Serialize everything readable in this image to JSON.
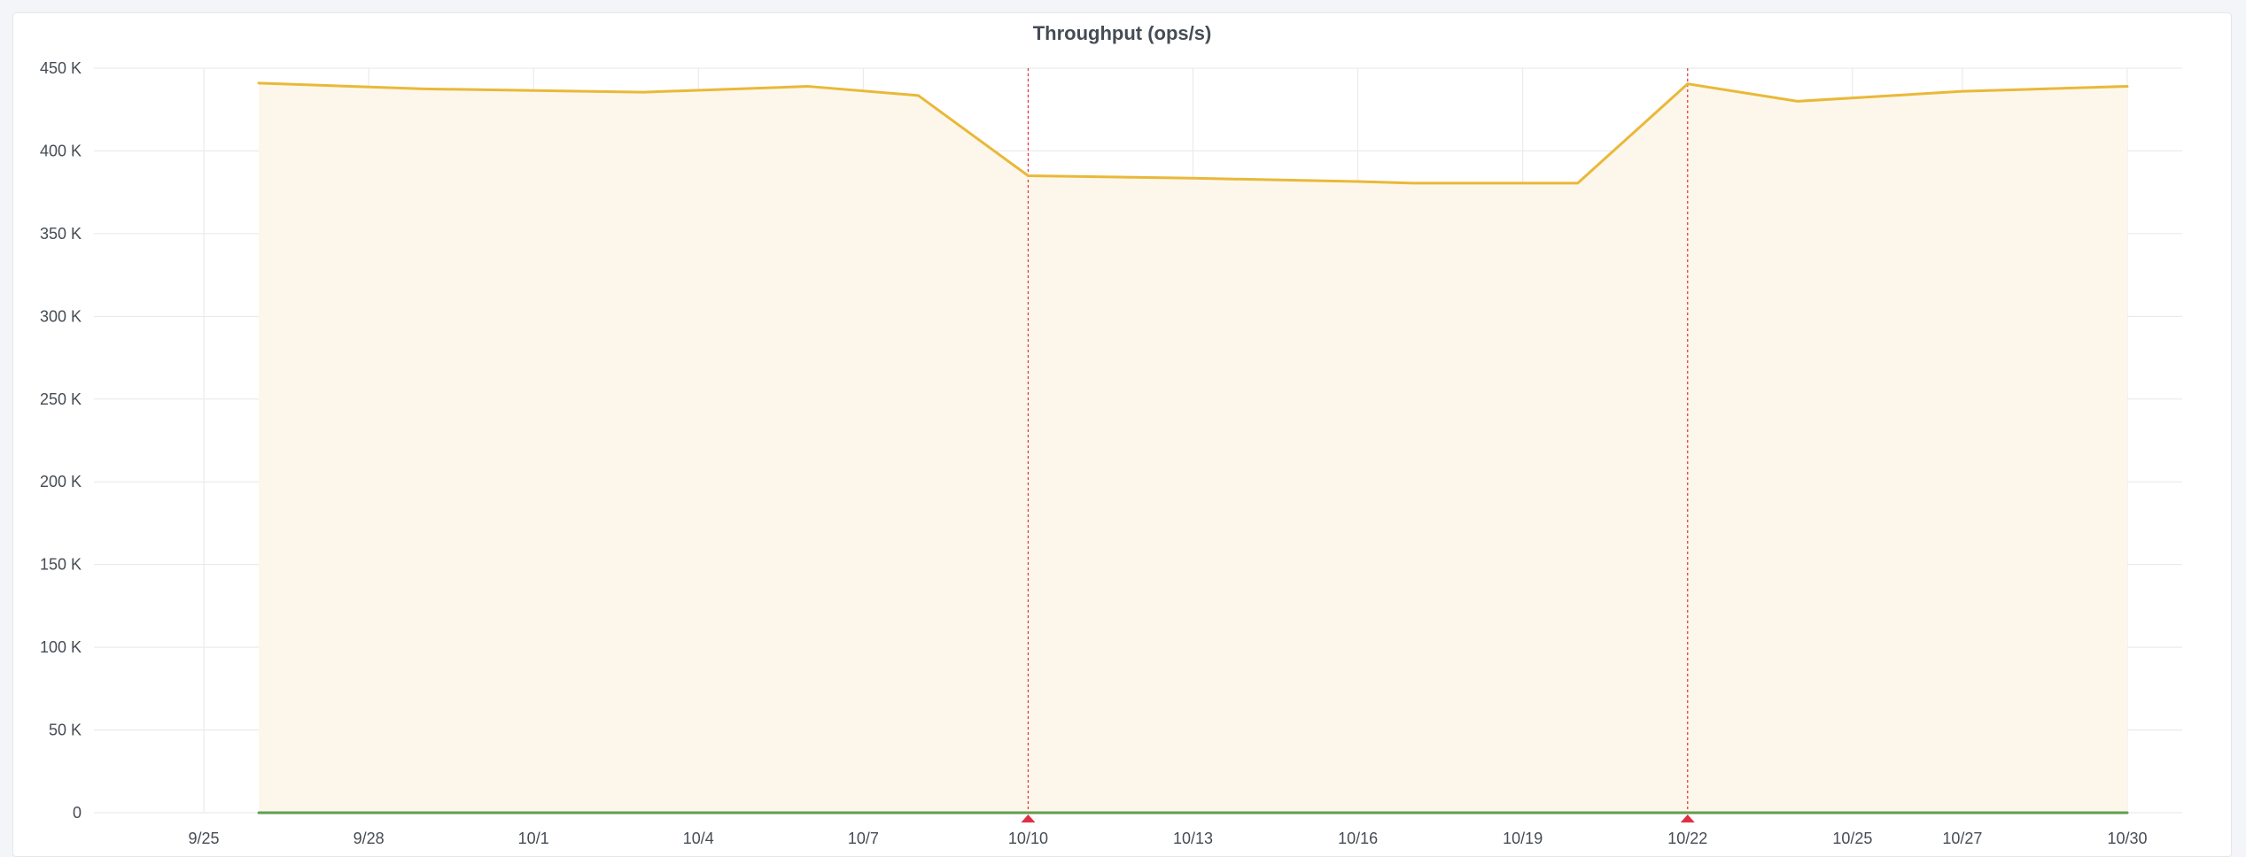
{
  "panel": {
    "title": "Throughput (ops/s)"
  },
  "chart_data": {
    "type": "area",
    "title": "Throughput (ops/s)",
    "xlabel": "",
    "ylabel": "",
    "ylim": [
      0,
      450000
    ],
    "y_ticks": [
      {
        "value": 0,
        "label": "0"
      },
      {
        "value": 50000,
        "label": "50 K"
      },
      {
        "value": 100000,
        "label": "100 K"
      },
      {
        "value": 150000,
        "label": "150 K"
      },
      {
        "value": 200000,
        "label": "200 K"
      },
      {
        "value": 250000,
        "label": "250 K"
      },
      {
        "value": 300000,
        "label": "300 K"
      },
      {
        "value": 350000,
        "label": "350 K"
      },
      {
        "value": 400000,
        "label": "400 K"
      },
      {
        "value": 450000,
        "label": "450 K"
      }
    ],
    "x_range": [
      "2023-09-23",
      "2023-10-31"
    ],
    "x_ticks": [
      {
        "date": "2023-09-25",
        "label": "9/25"
      },
      {
        "date": "2023-09-28",
        "label": "9/28"
      },
      {
        "date": "2023-10-01",
        "label": "10/1"
      },
      {
        "date": "2023-10-04",
        "label": "10/4"
      },
      {
        "date": "2023-10-07",
        "label": "10/7"
      },
      {
        "date": "2023-10-10",
        "label": "10/10"
      },
      {
        "date": "2023-10-13",
        "label": "10/13"
      },
      {
        "date": "2023-10-16",
        "label": "10/16"
      },
      {
        "date": "2023-10-19",
        "label": "10/19"
      },
      {
        "date": "2023-10-22",
        "label": "10/22"
      },
      {
        "date": "2023-10-25",
        "label": "10/25"
      },
      {
        "date": "2023-10-27",
        "label": "10/27"
      },
      {
        "date": "2023-10-30",
        "label": "10/30"
      }
    ],
    "grid": true,
    "legend": "none",
    "series": [
      {
        "color": "#eab839",
        "fill": "#fcf7ea",
        "area": true,
        "points": [
          {
            "x": "2023-09-26",
            "y": 441000
          },
          {
            "x": "2023-09-29",
            "y": 437500
          },
          {
            "x": "2023-10-03",
            "y": 435500
          },
          {
            "x": "2023-10-06",
            "y": 439000
          },
          {
            "x": "2023-10-08",
            "y": 433500
          },
          {
            "x": "2023-10-10",
            "y": 385000
          },
          {
            "x": "2023-10-13",
            "y": 383500
          },
          {
            "x": "2023-10-16",
            "y": 381500
          },
          {
            "x": "2023-10-17",
            "y": 380500
          },
          {
            "x": "2023-10-20",
            "y": 380500
          },
          {
            "x": "2023-10-22",
            "y": 440500
          },
          {
            "x": "2023-10-24",
            "y": 430000
          },
          {
            "x": "2023-10-27",
            "y": 436000
          },
          {
            "x": "2023-10-30",
            "y": 439000
          }
        ]
      },
      {
        "color": "#629e51",
        "fill": "none",
        "area": false,
        "points": [
          {
            "x": "2023-09-26",
            "y": 0
          },
          {
            "x": "2023-10-30",
            "y": 0
          }
        ]
      }
    ],
    "annotations": [
      {
        "x": "2023-10-10",
        "color": "#e02f44"
      },
      {
        "x": "2023-10-22",
        "color": "#e02f44"
      }
    ]
  }
}
